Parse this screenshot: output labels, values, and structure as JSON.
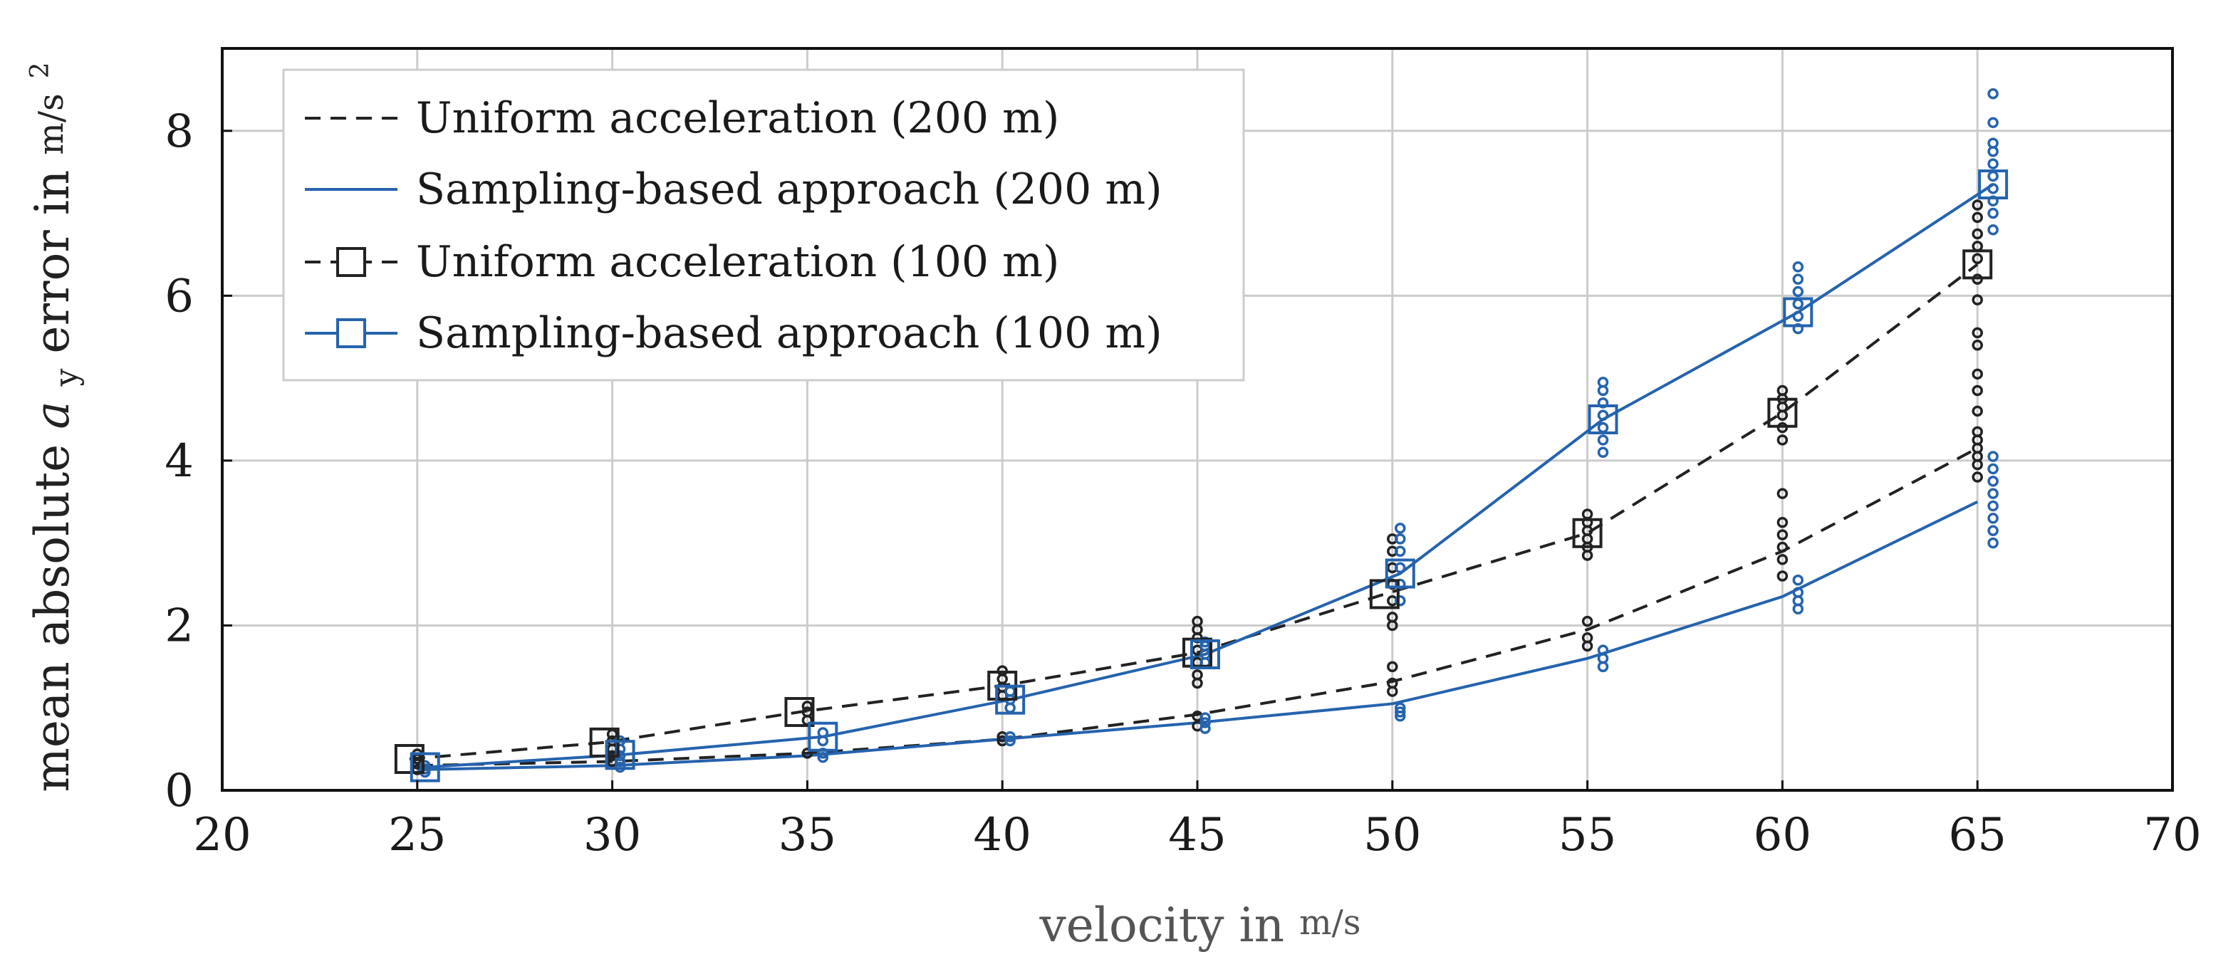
{
  "chart_data": {
    "type": "line",
    "xlabel_main": "velocity in",
    "xlabel_unit": "m/s",
    "ylabel_prefix": "mean absolute",
    "ylabel_var": "a",
    "ylabel_sub": "y",
    "ylabel_suffix": "error in",
    "ylabel_unit": "m/s",
    "ylabel_unit_exp": "2",
    "xlim": [
      20,
      70
    ],
    "ylim": [
      0,
      9
    ],
    "xticks": [
      20,
      25,
      30,
      35,
      40,
      45,
      50,
      55,
      60,
      65,
      70
    ],
    "yticks": [
      0,
      2,
      4,
      6,
      8
    ],
    "grid": true,
    "legend_position": "top-left",
    "colors": {
      "black": "#222222",
      "blue": "#2563ad",
      "grid": "#cccccc"
    },
    "series": [
      {
        "name": "Uniform acceleration (200 m)",
        "color": "#222222",
        "dash": true,
        "marker": false,
        "x": [
          25,
          30,
          35,
          40,
          45,
          50,
          55,
          60,
          65
        ],
        "y": [
          0.3,
          0.35,
          0.45,
          0.62,
          0.92,
          1.32,
          1.95,
          2.9,
          4.15
        ]
      },
      {
        "name": "Sampling-based approach (200 m)",
        "color": "#2563ad",
        "dash": false,
        "marker": false,
        "x": [
          25,
          30,
          35,
          40,
          45,
          50,
          55,
          60,
          65
        ],
        "y": [
          0.25,
          0.3,
          0.42,
          0.62,
          0.82,
          1.05,
          1.6,
          2.35,
          3.5
        ]
      },
      {
        "name": "Uniform acceleration (100 m)",
        "color": "#222222",
        "dash": true,
        "marker": true,
        "x": [
          24.8,
          29.8,
          34.8,
          40.0,
          45.0,
          49.8,
          55.0,
          60.0,
          65.0
        ],
        "y": [
          0.38,
          0.58,
          0.95,
          1.27,
          1.67,
          2.38,
          3.12,
          4.58,
          6.38
        ]
      },
      {
        "name": "Sampling-based approach (100 m)",
        "color": "#2563ad",
        "dash": false,
        "marker": true,
        "x": [
          25.2,
          30.2,
          35.4,
          40.2,
          45.2,
          50.2,
          55.4,
          60.4,
          65.4
        ],
        "y": [
          0.28,
          0.43,
          0.65,
          1.1,
          1.65,
          2.63,
          4.5,
          5.8,
          7.35
        ]
      }
    ],
    "scatter": [
      {
        "color": "#222222",
        "x": 25.0,
        "y": [
          0.25,
          0.32,
          0.38,
          0.44
        ]
      },
      {
        "color": "#222222",
        "x": 30.0,
        "y": [
          0.35,
          0.42,
          0.5,
          0.6,
          0.68
        ]
      },
      {
        "color": "#222222",
        "x": 35.0,
        "y": [
          0.45,
          0.85,
          0.95,
          1.02
        ]
      },
      {
        "color": "#222222",
        "x": 40.0,
        "y": [
          0.6,
          0.65,
          1.15,
          1.25,
          1.35,
          1.45
        ]
      },
      {
        "color": "#222222",
        "x": 45.0,
        "y": [
          0.78,
          0.9,
          1.3,
          1.4,
          1.55,
          1.7,
          1.85,
          1.95,
          2.05
        ]
      },
      {
        "color": "#222222",
        "x": 50.0,
        "y": [
          1.2,
          1.3,
          1.5,
          2.0,
          2.1,
          2.3,
          2.5,
          2.7,
          2.9,
          3.05
        ]
      },
      {
        "color": "#222222",
        "x": 55.0,
        "y": [
          1.75,
          1.85,
          2.05,
          2.85,
          2.95,
          3.05,
          3.15,
          3.25,
          3.35
        ]
      },
      {
        "color": "#222222",
        "x": 60.0,
        "y": [
          2.6,
          2.8,
          2.95,
          3.1,
          3.25,
          3.6,
          4.25,
          4.4,
          4.55,
          4.65,
          4.75,
          4.85
        ]
      },
      {
        "color": "#222222",
        "x": 65.0,
        "y": [
          3.8,
          3.95,
          4.05,
          4.15,
          4.25,
          4.35,
          4.6,
          4.85,
          5.05,
          5.4,
          5.55,
          5.95,
          6.2,
          6.45,
          6.6,
          6.75,
          6.95,
          7.1
        ]
      },
      {
        "color": "#2563ad",
        "x": 25.2,
        "y": [
          0.22,
          0.26,
          0.3
        ]
      },
      {
        "color": "#2563ad",
        "x": 30.2,
        "y": [
          0.28,
          0.35,
          0.42,
          0.5,
          0.6
        ]
      },
      {
        "color": "#2563ad",
        "x": 35.4,
        "y": [
          0.4,
          0.45,
          0.6,
          0.7
        ]
      },
      {
        "color": "#2563ad",
        "x": 40.2,
        "y": [
          0.6,
          0.65,
          1.0,
          1.1,
          1.2
        ]
      },
      {
        "color": "#2563ad",
        "x": 45.2,
        "y": [
          0.75,
          0.82,
          0.88,
          1.55,
          1.65,
          1.75,
          1.8
        ]
      },
      {
        "color": "#2563ad",
        "x": 50.2,
        "y": [
          0.9,
          0.95,
          1.0,
          2.3,
          2.5,
          2.7,
          2.9,
          3.05,
          3.18
        ]
      },
      {
        "color": "#2563ad",
        "x": 55.4,
        "y": [
          1.5,
          1.6,
          1.7,
          4.1,
          4.25,
          4.4,
          4.55,
          4.7,
          4.85,
          4.95
        ]
      },
      {
        "color": "#2563ad",
        "x": 60.4,
        "y": [
          2.2,
          2.3,
          2.4,
          2.55,
          5.6,
          5.75,
          5.9,
          6.05,
          6.2,
          6.35
        ]
      },
      {
        "color": "#2563ad",
        "x": 65.4,
        "y": [
          3.0,
          3.15,
          3.3,
          3.45,
          3.6,
          3.75,
          3.9,
          4.05,
          6.8,
          7.0,
          7.15,
          7.3,
          7.45,
          7.6,
          7.75,
          7.85,
          8.1,
          8.45
        ]
      }
    ]
  }
}
